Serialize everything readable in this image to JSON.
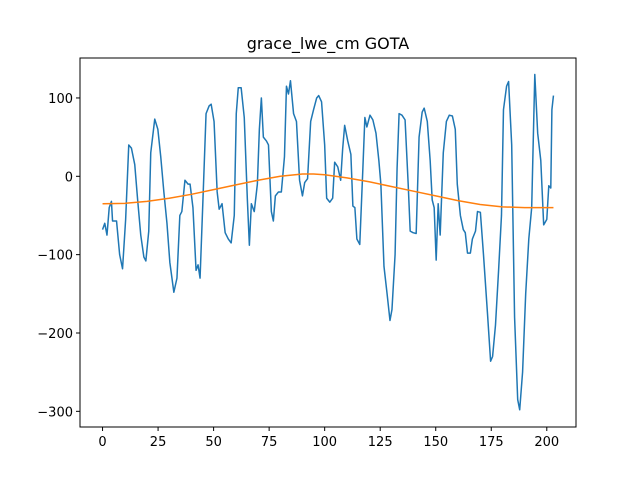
{
  "chart_data": {
    "type": "line",
    "title": "grace_lwe_cm GOTA",
    "xlim": [
      -10.15,
      213.15
    ],
    "ylim": [
      -320,
      151
    ],
    "xticks": [
      0,
      25,
      50,
      75,
      100,
      125,
      150,
      175,
      200
    ],
    "yticks": [
      {
        "value": -300,
        "label": "−300"
      },
      {
        "value": -200,
        "label": "−200"
      },
      {
        "value": -100,
        "label": "−100"
      },
      0,
      100
    ],
    "series": [
      {
        "color": "#1f77b4",
        "x": [
          0,
          1,
          2,
          3,
          4,
          4.5,
          6.3,
          7.7,
          9,
          10.4,
          11.8,
          13,
          14.5,
          15.8,
          17.2,
          18.6,
          19.5,
          20.8,
          21.7,
          23.5,
          24.9,
          26.2,
          27.6,
          29,
          30.3,
          32.1,
          33.5,
          34.8,
          35.7,
          37.1,
          38.5,
          39.4,
          40.7,
          42.1,
          43,
          43.9,
          45.2,
          46.6,
          48,
          48.9,
          50.2,
          51.6,
          52.5,
          53.8,
          55.2,
          56.6,
          57.9,
          59.3,
          60.2,
          61.1,
          62.4,
          63.8,
          65.2,
          66.1,
          67,
          68.3,
          69.7,
          70.6,
          71.5,
          72.4,
          73.8,
          74.7,
          76,
          76.9,
          77.8,
          79.2,
          80.5,
          81.9,
          82.8,
          83.7,
          84.6,
          86,
          87.3,
          88.7,
          90,
          91,
          92.3,
          93.7,
          95,
          96.4,
          97.3,
          98.6,
          100,
          100.9,
          102.3,
          103.6,
          104.5,
          105.9,
          107.2,
          108.1,
          109,
          110.4,
          111.8,
          112.7,
          113.6,
          114.5,
          115.8,
          117.2,
          118.1,
          119,
          120.4,
          121.7,
          123.1,
          124.4,
          125.3,
          126.7,
          128.1,
          129.4,
          130.3,
          131.7,
          132.6,
          133.5,
          134.8,
          136.2,
          137.6,
          138.5,
          139.8,
          141.2,
          142.5,
          143.9,
          144.8,
          146.2,
          147.5,
          148.4,
          149.3,
          150.2,
          151.1,
          152,
          153.4,
          154.8,
          156.1,
          157.5,
          158.8,
          159.7,
          161.1,
          162.4,
          163.3,
          164.3,
          165.6,
          166.5,
          167.9,
          168.8,
          170.1,
          171.5,
          173.3,
          174.7,
          175.6,
          176.9,
          178.3,
          179.6,
          180.5,
          181.9,
          182.8,
          184.2,
          185.5,
          186.9,
          187.8,
          189.1,
          190.5,
          191.9,
          193.2,
          194.6,
          195.9,
          197.3,
          198.6,
          200,
          200.9,
          201.8,
          202.3,
          203
        ],
        "values": [
          -68,
          -60,
          -75,
          -40,
          -32,
          -57,
          -57,
          -100,
          -118,
          -55,
          40,
          36,
          15,
          -30,
          -75,
          -103,
          -108,
          -70,
          30,
          73,
          60,
          25,
          -20,
          -60,
          -110,
          -148,
          -130,
          -50,
          -45,
          -5,
          -10,
          -10,
          -40,
          -120,
          -113,
          -130,
          -30,
          80,
          90,
          92,
          70,
          -20,
          -42,
          -35,
          -72,
          -80,
          -85,
          -50,
          80,
          113,
          113,
          75,
          -30,
          -88,
          -35,
          -45,
          -10,
          60,
          100,
          50,
          45,
          40,
          -45,
          -57,
          -25,
          -20,
          -20,
          25,
          115,
          105,
          122,
          80,
          70,
          -5,
          -25,
          -8,
          -3,
          70,
          85,
          100,
          103,
          95,
          40,
          -28,
          -33,
          -28,
          18,
          12,
          -5,
          35,
          65,
          45,
          28,
          -38,
          -40,
          -80,
          -87,
          10,
          75,
          63,
          78,
          72,
          55,
          20,
          -10,
          -115,
          -150,
          -184,
          -170,
          -100,
          10,
          80,
          78,
          72,
          -10,
          -70,
          -72,
          -73,
          50,
          82,
          87,
          70,
          20,
          -30,
          -40,
          -107,
          -35,
          -75,
          30,
          70,
          78,
          77,
          60,
          -10,
          -50,
          -68,
          -72,
          -98,
          -98,
          -80,
          -70,
          -45,
          -46,
          -100,
          -175,
          -236,
          -230,
          -190,
          -120,
          -50,
          85,
          115,
          121,
          40,
          -180,
          -285,
          -298,
          -250,
          -150,
          -80,
          -40,
          130,
          55,
          20,
          -62,
          -55,
          -12,
          -15,
          85,
          103
        ]
      },
      {
        "color": "#ff7f0e",
        "x": [
          0,
          10,
          20,
          30,
          40,
          50,
          60,
          70,
          80,
          90,
          95,
          100,
          110,
          120,
          130,
          140,
          150,
          160,
          170,
          180,
          190,
          203
        ],
        "values": [
          -35,
          -34.5,
          -32,
          -28,
          -23,
          -17,
          -11,
          -5,
          0,
          3,
          3,
          2,
          -2,
          -7,
          -13,
          -19,
          -25,
          -31,
          -36,
          -39,
          -40,
          -40
        ]
      }
    ]
  }
}
